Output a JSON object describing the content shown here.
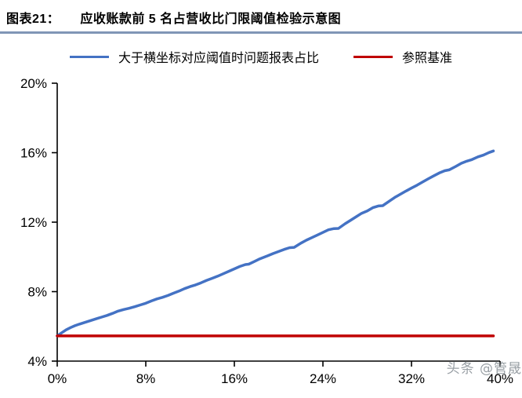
{
  "header": {
    "label": "图表21：",
    "title": "应收账款前 5 名占营收比门限阈值检验示意图",
    "underline_color": "#8096b6"
  },
  "legend": [
    {
      "label": "大于横坐标对应阈值时问题报表占比",
      "color": "#4472c4"
    },
    {
      "label": "参照基准",
      "color": "#c00000"
    }
  ],
  "watermark": "头条 @管晟",
  "colors": {
    "axis": "#000000",
    "tick_label": "#000000",
    "series_blue": "#4472c4",
    "series_red": "#c00000"
  },
  "chart_data": {
    "type": "line",
    "title": "应收账款前 5 名占营收比门限阈值检验示意图",
    "xlabel": "",
    "ylabel": "",
    "xlim": [
      0,
      40
    ],
    "ylim": [
      4,
      20
    ],
    "grid": false,
    "legend_position": "top-center",
    "x_tick_labels": [
      "0%",
      "8%",
      "16%",
      "24%",
      "32%",
      "40%"
    ],
    "x_tick_values": [
      0,
      8,
      16,
      24,
      32,
      40
    ],
    "y_tick_labels": [
      "4%",
      "8%",
      "12%",
      "16%",
      "20%"
    ],
    "y_tick_values": [
      4,
      8,
      12,
      16,
      20
    ],
    "series": [
      {
        "name": "大于横坐标对应阈值时问题报表占比",
        "color": "#4472c4",
        "width": 3.5,
        "points": [
          [
            0,
            5.45
          ],
          [
            0.4,
            5.63
          ],
          [
            0.8,
            5.8
          ],
          [
            1.2,
            5.93
          ],
          [
            1.6,
            6.04
          ],
          [
            2,
            6.13
          ],
          [
            2.5,
            6.23
          ],
          [
            3,
            6.33
          ],
          [
            3.5,
            6.43
          ],
          [
            4,
            6.53
          ],
          [
            4.5,
            6.63
          ],
          [
            5,
            6.75
          ],
          [
            5.5,
            6.88
          ],
          [
            6,
            6.97
          ],
          [
            6.5,
            7.04
          ],
          [
            7,
            7.13
          ],
          [
            7.5,
            7.23
          ],
          [
            8,
            7.33
          ],
          [
            8.5,
            7.46
          ],
          [
            9,
            7.58
          ],
          [
            9.5,
            7.67
          ],
          [
            10,
            7.78
          ],
          [
            10.5,
            7.91
          ],
          [
            11,
            8.03
          ],
          [
            11.5,
            8.17
          ],
          [
            12,
            8.29
          ],
          [
            12.5,
            8.39
          ],
          [
            13,
            8.51
          ],
          [
            13.5,
            8.65
          ],
          [
            14,
            8.77
          ],
          [
            14.5,
            8.89
          ],
          [
            15,
            9.03
          ],
          [
            15.5,
            9.17
          ],
          [
            16,
            9.31
          ],
          [
            16.5,
            9.45
          ],
          [
            17,
            9.56
          ],
          [
            17.3,
            9.58
          ],
          [
            17.8,
            9.73
          ],
          [
            18.3,
            9.89
          ],
          [
            19,
            10.06
          ],
          [
            19.5,
            10.19
          ],
          [
            20,
            10.31
          ],
          [
            20.5,
            10.43
          ],
          [
            21,
            10.53
          ],
          [
            21.4,
            10.55
          ],
          [
            22,
            10.79
          ],
          [
            22.5,
            10.96
          ],
          [
            23,
            11.11
          ],
          [
            23.5,
            11.26
          ],
          [
            24,
            11.41
          ],
          [
            24.5,
            11.56
          ],
          [
            25,
            11.63
          ],
          [
            25.4,
            11.64
          ],
          [
            26,
            11.91
          ],
          [
            26.5,
            12.11
          ],
          [
            27,
            12.31
          ],
          [
            27.5,
            12.51
          ],
          [
            28,
            12.64
          ],
          [
            28.5,
            12.83
          ],
          [
            29,
            12.93
          ],
          [
            29.4,
            12.95
          ],
          [
            30,
            13.21
          ],
          [
            30.5,
            13.43
          ],
          [
            31,
            13.61
          ],
          [
            31.5,
            13.79
          ],
          [
            32,
            13.96
          ],
          [
            32.5,
            14.13
          ],
          [
            33,
            14.31
          ],
          [
            33.5,
            14.49
          ],
          [
            34,
            14.66
          ],
          [
            34.5,
            14.83
          ],
          [
            35,
            14.96
          ],
          [
            35.4,
            15.01
          ],
          [
            36,
            15.21
          ],
          [
            36.5,
            15.39
          ],
          [
            37,
            15.51
          ],
          [
            37.4,
            15.59
          ],
          [
            38,
            15.76
          ],
          [
            38.5,
            15.86
          ],
          [
            39,
            16.01
          ],
          [
            39.4,
            16.1
          ]
        ]
      },
      {
        "name": "参照基准",
        "color": "#c00000",
        "width": 3.5,
        "points": [
          [
            0,
            5.45
          ],
          [
            39.4,
            5.45
          ]
        ]
      }
    ]
  }
}
